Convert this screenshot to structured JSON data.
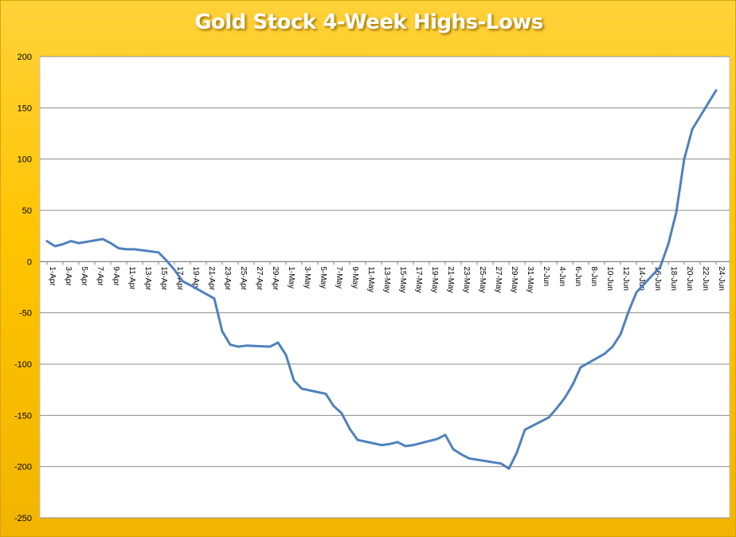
{
  "chart_data": {
    "type": "line",
    "title": "Gold Stock 4-Week Highs-Lows",
    "xlabel": "",
    "ylabel": "",
    "ylim": [
      -250,
      200
    ],
    "yticks": [
      200,
      150,
      100,
      50,
      0,
      -50,
      -100,
      -150,
      -200,
      -250
    ],
    "grid": true,
    "legend": "none",
    "colors": {
      "line": "#4f81bd",
      "background": "#ffc400",
      "plot_area": "#ffffff",
      "gridline": "#8c8c8c",
      "title_text": "#ffffff"
    },
    "x_tick_labels": [
      "1-Apr",
      "3-Apr",
      "5-Apr",
      "7-Apr",
      "9-Apr",
      "11-Apr",
      "13-Apr",
      "15-Apr",
      "17-Apr",
      "19-Apr",
      "21-Apr",
      "23-Apr",
      "25-Apr",
      "27-Apr",
      "29-Apr",
      "1-May",
      "3-May",
      "5-May",
      "7-May",
      "9-May",
      "11-May",
      "13-May",
      "15-May",
      "17-May",
      "19-May",
      "21-May",
      "23-May",
      "25-May",
      "27-May",
      "29-May",
      "31-May",
      "2-Jun",
      "4-Jun",
      "6-Jun",
      "8-Jun",
      "10-Jun",
      "12-Jun",
      "14-Jun",
      "16-Jun",
      "18-Jun",
      "20-Jun",
      "22-Jun",
      "24-Jun"
    ],
    "x": [
      "1-Apr",
      "2-Apr",
      "3-Apr",
      "4-Apr",
      "5-Apr",
      "8-Apr",
      "9-Apr",
      "10-Apr",
      "11-Apr",
      "12-Apr",
      "15-Apr",
      "16-Apr",
      "17-Apr",
      "18-Apr",
      "19-Apr",
      "22-Apr",
      "23-Apr",
      "24-Apr",
      "25-Apr",
      "26-Apr",
      "29-Apr",
      "30-Apr",
      "1-May",
      "2-May",
      "3-May",
      "6-May",
      "7-May",
      "8-May",
      "9-May",
      "10-May",
      "13-May",
      "14-May",
      "15-May",
      "16-May",
      "17-May",
      "20-May",
      "21-May",
      "22-May",
      "23-May",
      "24-May",
      "28-May",
      "29-May",
      "30-May",
      "31-May",
      "3-Jun",
      "4-Jun",
      "5-Jun",
      "6-Jun",
      "7-Jun",
      "10-Jun",
      "11-Jun",
      "12-Jun",
      "13-Jun",
      "14-Jun",
      "17-Jun",
      "18-Jun",
      "19-Jun",
      "20-Jun",
      "21-Jun",
      "24-Jun"
    ],
    "series": [
      {
        "values": [
          20,
          15,
          17,
          20,
          18,
          22,
          18,
          13,
          12,
          12,
          9,
          1,
          -8,
          -19,
          -23,
          -36,
          -68,
          -81,
          -83,
          -82,
          -83,
          -79,
          -91,
          -116,
          -124,
          -129,
          -141,
          -148,
          -163,
          -174,
          -179,
          -178,
          -176,
          -180,
          -179,
          -173,
          -169,
          -183,
          -188,
          -192,
          -197,
          -202,
          -186,
          -164,
          -152,
          -143,
          -133,
          -120,
          -103,
          -90,
          -83,
          -71,
          -49,
          -30,
          -5,
          17,
          48,
          100,
          129,
          167
        ]
      }
    ]
  }
}
